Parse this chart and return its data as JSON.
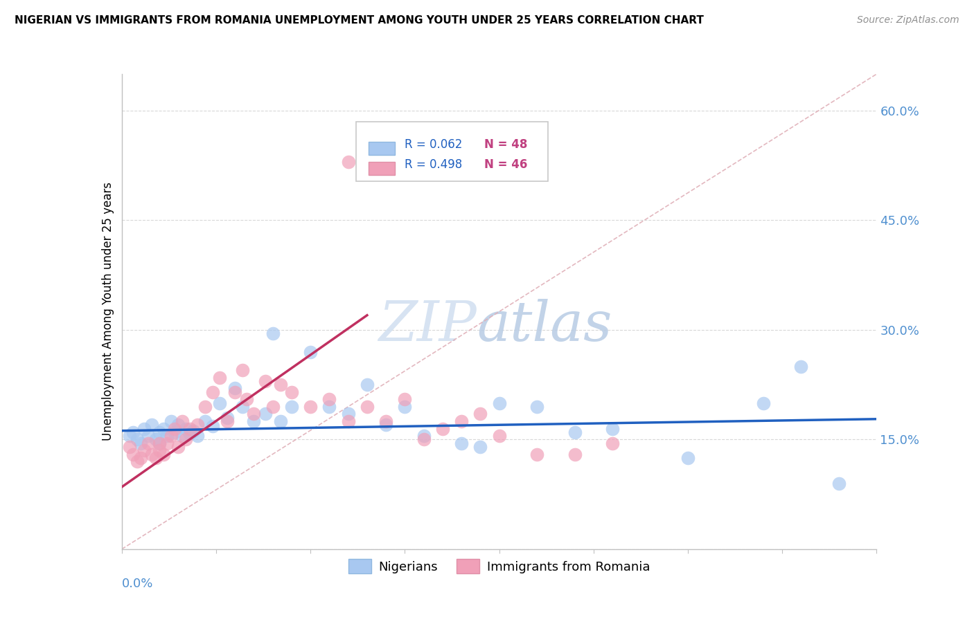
{
  "title": "NIGERIAN VS IMMIGRANTS FROM ROMANIA UNEMPLOYMENT AMONG YOUTH UNDER 25 YEARS CORRELATION CHART",
  "source": "Source: ZipAtlas.com",
  "ylabel": "Unemployment Among Youth under 25 years",
  "xmin": 0.0,
  "xmax": 0.2,
  "ymin": 0.0,
  "ymax": 0.65,
  "ytick_vals": [
    0.0,
    0.15,
    0.3,
    0.45,
    0.6
  ],
  "ytick_labels": [
    "",
    "15.0%",
    "30.0%",
    "45.0%",
    "60.0%"
  ],
  "watermark_zip": "ZIP",
  "watermark_atlas": "atlas",
  "blue_scatter_color": "#a8c8f0",
  "pink_scatter_color": "#f0a0b8",
  "blue_line_color": "#2060c0",
  "pink_line_color": "#c03060",
  "diagonal_color": "#e0b0b8",
  "axis_label_color": "#5090d0",
  "legend_r1": "R = 0.062",
  "legend_n1": "N = 48",
  "legend_r2": "R = 0.498",
  "legend_n2": "N = 46",
  "legend_color1": "#a8c8f0",
  "legend_color2": "#f0a0b8",
  "legend_text_color": "#2060c0",
  "legend_n_color": "#c04080",
  "nigerians_x": [
    0.002,
    0.003,
    0.004,
    0.005,
    0.006,
    0.007,
    0.008,
    0.009,
    0.01,
    0.01,
    0.011,
    0.012,
    0.013,
    0.014,
    0.015,
    0.016,
    0.017,
    0.018,
    0.019,
    0.02,
    0.022,
    0.024,
    0.026,
    0.028,
    0.03,
    0.032,
    0.035,
    0.038,
    0.04,
    0.042,
    0.045,
    0.05,
    0.055,
    0.06,
    0.065,
    0.07,
    0.075,
    0.08,
    0.09,
    0.095,
    0.1,
    0.11,
    0.12,
    0.13,
    0.15,
    0.17,
    0.18,
    0.19
  ],
  "nigerians_y": [
    0.155,
    0.16,
    0.15,
    0.145,
    0.165,
    0.155,
    0.17,
    0.15,
    0.16,
    0.145,
    0.165,
    0.155,
    0.175,
    0.16,
    0.17,
    0.155,
    0.165,
    0.158,
    0.162,
    0.155,
    0.175,
    0.168,
    0.2,
    0.18,
    0.22,
    0.195,
    0.175,
    0.185,
    0.295,
    0.175,
    0.195,
    0.27,
    0.195,
    0.185,
    0.225,
    0.17,
    0.195,
    0.155,
    0.145,
    0.14,
    0.2,
    0.195,
    0.16,
    0.165,
    0.125,
    0.2,
    0.25,
    0.09
  ],
  "romania_x": [
    0.002,
    0.003,
    0.004,
    0.005,
    0.006,
    0.007,
    0.008,
    0.009,
    0.01,
    0.01,
    0.011,
    0.012,
    0.013,
    0.014,
    0.015,
    0.016,
    0.017,
    0.018,
    0.02,
    0.022,
    0.024,
    0.026,
    0.028,
    0.03,
    0.032,
    0.033,
    0.035,
    0.038,
    0.04,
    0.042,
    0.045,
    0.05,
    0.055,
    0.06,
    0.065,
    0.07,
    0.075,
    0.08,
    0.085,
    0.09,
    0.095,
    0.1,
    0.11,
    0.12,
    0.13,
    0.06
  ],
  "romania_y": [
    0.14,
    0.13,
    0.12,
    0.125,
    0.135,
    0.145,
    0.13,
    0.125,
    0.135,
    0.145,
    0.13,
    0.145,
    0.155,
    0.165,
    0.14,
    0.175,
    0.15,
    0.165,
    0.17,
    0.195,
    0.215,
    0.235,
    0.175,
    0.215,
    0.245,
    0.205,
    0.185,
    0.23,
    0.195,
    0.225,
    0.215,
    0.195,
    0.205,
    0.175,
    0.195,
    0.175,
    0.205,
    0.15,
    0.165,
    0.175,
    0.185,
    0.155,
    0.13,
    0.13,
    0.145,
    0.53
  ]
}
